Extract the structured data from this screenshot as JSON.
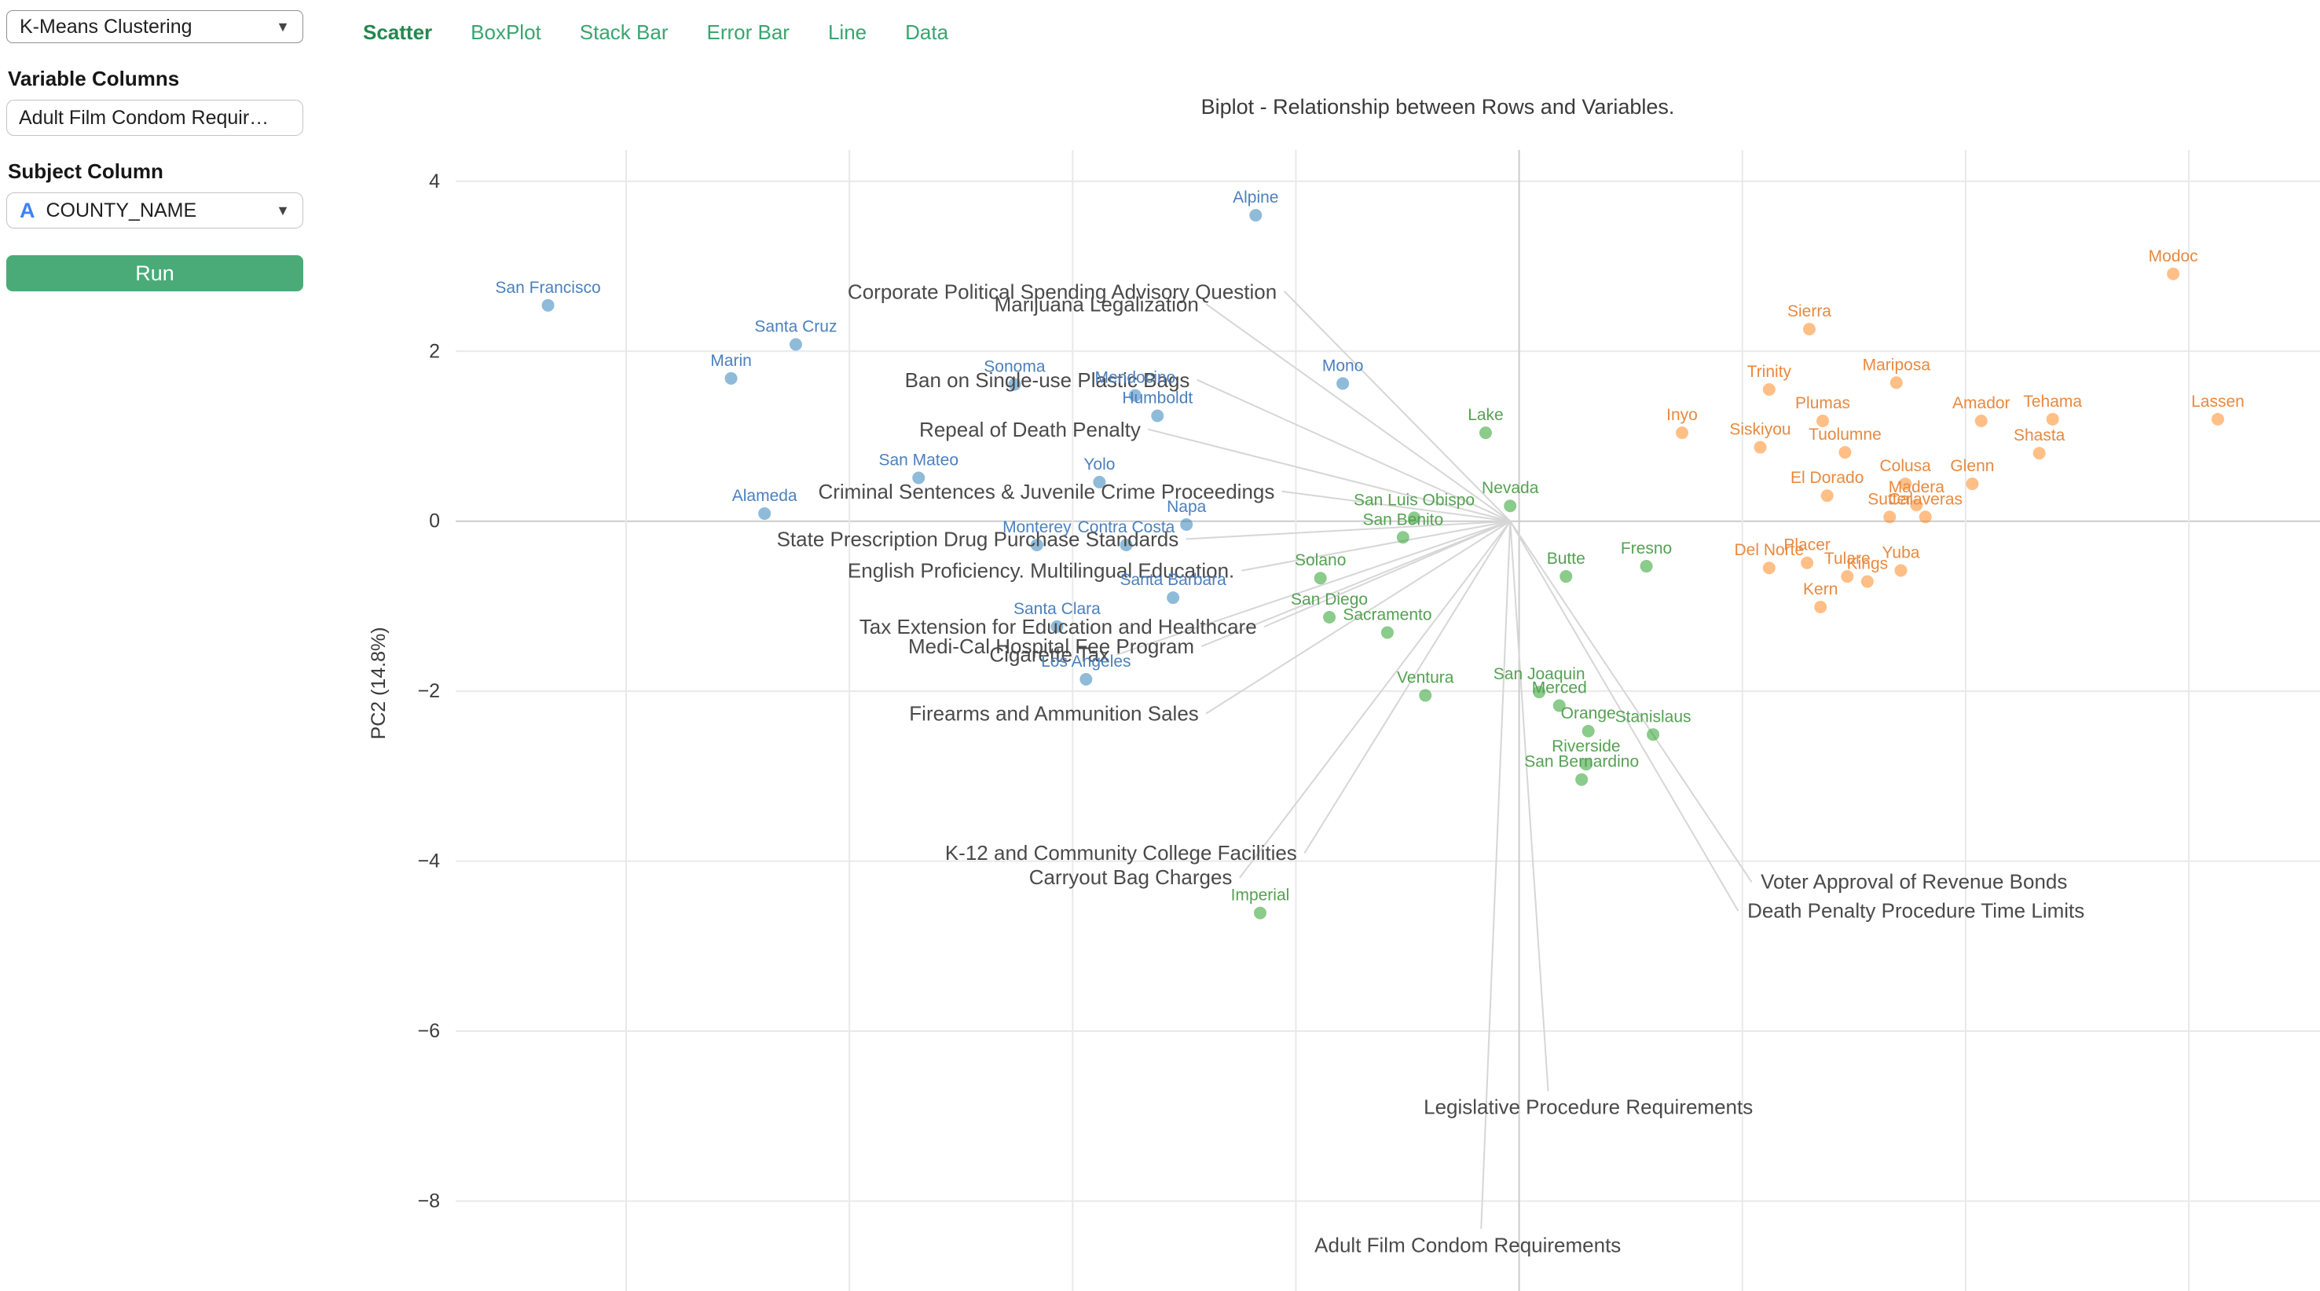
{
  "sidebar": {
    "clustering_select": {
      "value": "K-Means Clustering"
    },
    "variable_columns_label": "Variable Columns",
    "variable_columns_value": "Adult Film Condom Requir…",
    "subject_column_label": "Subject Column",
    "subject_select": {
      "type_icon": "A",
      "value": "COUNTY_NAME"
    },
    "run_button": "Run"
  },
  "tabs": [
    {
      "label": "Scatter",
      "active": true
    },
    {
      "label": "BoxPlot",
      "active": false
    },
    {
      "label": "Stack Bar",
      "active": false
    },
    {
      "label": "Error Bar",
      "active": false
    },
    {
      "label": "Line",
      "active": false
    },
    {
      "label": "Data",
      "active": false
    }
  ],
  "chart_data": {
    "type": "scatter",
    "title": "Biplot - Relationship between Rows and Variables.",
    "ylabel": "PC2 (14.8%)",
    "xlim": [
      -4.85,
      3.59
    ],
    "ylim": [
      -9.06,
      4.38
    ],
    "yticks": [
      {
        "v": 4,
        "label": "4"
      },
      {
        "v": 2,
        "label": "2"
      },
      {
        "v": 0,
        "label": "0"
      },
      {
        "v": -2,
        "label": "−2"
      },
      {
        "v": -4,
        "label": "−4"
      },
      {
        "v": -6,
        "label": "−6"
      },
      {
        "v": -8,
        "label": "−8"
      }
    ],
    "xgridlines": [
      -4,
      -3,
      -2,
      -1,
      0,
      1,
      2,
      3
    ],
    "grid": true,
    "legend_position": "none",
    "origin": {
      "x": -0.04,
      "y": 0.0
    },
    "style": {
      "grid_color": "#e9e9e9",
      "zero_grid_color": "#cccccc",
      "vector_color": "#d6d6d6",
      "vector_label_color": "#4a4a4a",
      "tick_label_color": "#3c3c3c",
      "axis_label_color": "#3a3a3a"
    },
    "clusters": [
      {
        "name": "cluster-blue",
        "color": "#1f77b4",
        "opacity": 0.5,
        "label_color": "#4c80bd",
        "points": [
          {
            "label": "Alpine",
            "x": -1.18,
            "y": 3.6
          },
          {
            "label": "San Francisco",
            "x": -4.35,
            "y": 2.54
          },
          {
            "label": "Santa Cruz",
            "x": -3.24,
            "y": 2.08
          },
          {
            "label": "Marin",
            "x": -3.53,
            "y": 1.68
          },
          {
            "label": "Sonoma",
            "x": -2.26,
            "y": 1.61
          },
          {
            "label": "Mendocino",
            "x": -1.72,
            "y": 1.48
          },
          {
            "label": "Humboldt",
            "x": -1.62,
            "y": 1.24
          },
          {
            "label": "Mono",
            "x": -0.79,
            "y": 1.62
          },
          {
            "label": "San Mateo",
            "x": -2.69,
            "y": 0.51
          },
          {
            "label": "Yolo",
            "x": -1.88,
            "y": 0.46
          },
          {
            "label": "Alameda",
            "x": -3.38,
            "y": 0.09
          },
          {
            "label": "Napa",
            "x": -1.49,
            "y": -0.04
          },
          {
            "label": "Monterey",
            "x": -2.16,
            "y": -0.28
          },
          {
            "label": "Contra Costa",
            "x": -1.76,
            "y": -0.28
          },
          {
            "label": "Santa Barbara",
            "x": -1.55,
            "y": -0.9
          },
          {
            "label": "Santa Clara",
            "x": -2.07,
            "y": -1.24
          },
          {
            "label": "Los Angeles",
            "x": -1.94,
            "y": -1.86
          }
        ]
      },
      {
        "name": "cluster-green",
        "color": "#2ca02c",
        "opacity": 0.55,
        "label_color": "#55a153",
        "points": [
          {
            "label": "Lake",
            "x": -0.15,
            "y": 1.04
          },
          {
            "label": "Nevada",
            "x": -0.04,
            "y": 0.18
          },
          {
            "label": "San Luis Obispo",
            "x": -0.47,
            "y": 0.04
          },
          {
            "label": "San Benito",
            "x": -0.52,
            "y": -0.19
          },
          {
            "label": "Solano",
            "x": -0.89,
            "y": -0.67
          },
          {
            "label": "Butte",
            "x": 0.21,
            "y": -0.65
          },
          {
            "label": "Fresno",
            "x": 0.57,
            "y": -0.53
          },
          {
            "label": "San Diego",
            "x": -0.85,
            "y": -1.13
          },
          {
            "label": "Sacramento",
            "x": -0.59,
            "y": -1.31
          },
          {
            "label": "Ventura",
            "x": -0.42,
            "y": -2.05
          },
          {
            "label": "San Joaquin",
            "x": 0.09,
            "y": -2.01
          },
          {
            "label": "Merced",
            "x": 0.18,
            "y": -2.17
          },
          {
            "label": "Orange",
            "x": 0.31,
            "y": -2.47
          },
          {
            "label": "Stanislaus",
            "x": 0.6,
            "y": -2.51
          },
          {
            "label": "Riverside",
            "x": 0.3,
            "y": -2.86
          },
          {
            "label": "San Bernardino",
            "x": 0.28,
            "y": -3.04
          },
          {
            "label": "Imperial",
            "x": -1.16,
            "y": -4.61
          }
        ]
      },
      {
        "name": "cluster-orange",
        "color": "#ff7f0e",
        "opacity": 0.5,
        "label_color": "#e8893f",
        "points": [
          {
            "label": "Modoc",
            "x": 2.93,
            "y": 2.91
          },
          {
            "label": "Sierra",
            "x": 1.3,
            "y": 2.26
          },
          {
            "label": "Trinity",
            "x": 1.12,
            "y": 1.55
          },
          {
            "label": "Mariposa",
            "x": 1.69,
            "y": 1.63
          },
          {
            "label": "Plumas",
            "x": 1.36,
            "y": 1.18
          },
          {
            "label": "Amador",
            "x": 2.07,
            "y": 1.18
          },
          {
            "label": "Tehama",
            "x": 2.39,
            "y": 1.2
          },
          {
            "label": "Lassen",
            "x": 3.13,
            "y": 1.2
          },
          {
            "label": "Inyo",
            "x": 0.73,
            "y": 1.04
          },
          {
            "label": "Siskiyou",
            "x": 1.08,
            "y": 0.87
          },
          {
            "label": "Tuolumne",
            "x": 1.46,
            "y": 0.81
          },
          {
            "label": "Shasta",
            "x": 2.33,
            "y": 0.8
          },
          {
            "label": "Colusa",
            "x": 1.73,
            "y": 0.44
          },
          {
            "label": "Glenn",
            "x": 2.03,
            "y": 0.44
          },
          {
            "label": "El Dorado",
            "x": 1.38,
            "y": 0.3
          },
          {
            "label": "Madera",
            "x": 1.78,
            "y": 0.19
          },
          {
            "label": "Sutter",
            "x": 1.66,
            "y": 0.05
          },
          {
            "label": "Calaveras",
            "x": 1.82,
            "y": 0.05
          },
          {
            "label": "Del Norte",
            "x": 1.12,
            "y": -0.55
          },
          {
            "label": "Placer",
            "x": 1.29,
            "y": -0.49
          },
          {
            "label": "Yuba",
            "x": 1.71,
            "y": -0.58
          },
          {
            "label": "Tulare",
            "x": 1.47,
            "y": -0.65
          },
          {
            "label": "Kings",
            "x": 1.56,
            "y": -0.71
          },
          {
            "label": "Kern",
            "x": 1.35,
            "y": -1.01
          }
        ]
      }
    ],
    "vectors": [
      {
        "label": "Corporate Political Spending Advisory Question",
        "x": -1.05,
        "y": 2.7,
        "anchor": "end"
      },
      {
        "label": "Marijuana Legalization",
        "x": -1.4,
        "y": 2.55,
        "anchor": "end"
      },
      {
        "label": "Ban on Single-use Plastic Bags",
        "x": -1.44,
        "y": 1.66,
        "anchor": "end"
      },
      {
        "label": "Repeal of Death Penalty",
        "x": -1.66,
        "y": 1.08,
        "anchor": "end"
      },
      {
        "label": "Criminal Sentences & Juvenile Crime Proceedings",
        "x": -1.06,
        "y": 0.35,
        "anchor": "end"
      },
      {
        "label": "State Prescription Drug Purchase Standards",
        "x": -1.49,
        "y": -0.21,
        "anchor": "end"
      },
      {
        "label": "English Proficiency. Multilingual Education.",
        "x": -1.24,
        "y": -0.58,
        "anchor": "end"
      },
      {
        "label": "Tax Extension for Education and Healthcare",
        "x": -1.14,
        "y": -1.24,
        "anchor": "end"
      },
      {
        "label": "Medi-Cal Hospital Fee Program",
        "x": -1.42,
        "y": -1.47,
        "anchor": "end"
      },
      {
        "label": "Cigarette Tax",
        "x": -1.8,
        "y": -1.57,
        "anchor": "end"
      },
      {
        "label": "Firearms and Ammunition Sales",
        "x": -1.4,
        "y": -2.26,
        "anchor": "end"
      },
      {
        "label": "K-12 and Community College Facilities",
        "x": -0.96,
        "y": -3.9,
        "anchor": "end"
      },
      {
        "label": "Carryout Bag Charges",
        "x": -1.25,
        "y": -4.19,
        "anchor": "end"
      },
      {
        "label": "Voter Approval of Revenue Bonds",
        "x": 1.04,
        "y": -4.24,
        "anchor": "start"
      },
      {
        "label": "Death Penalty Procedure Time Limits",
        "x": 0.98,
        "y": -4.58,
        "anchor": "start"
      },
      {
        "label": "Legislative Procedure Requirements",
        "x": 0.13,
        "y": -6.7,
        "anchor": "middle",
        "lx": 0.31,
        "ly": -6.89
      },
      {
        "label": "Adult Film Condom Requirements",
        "x": -0.17,
        "y": -8.32,
        "anchor": "middle",
        "lx": -0.23,
        "ly": -8.52
      }
    ]
  }
}
